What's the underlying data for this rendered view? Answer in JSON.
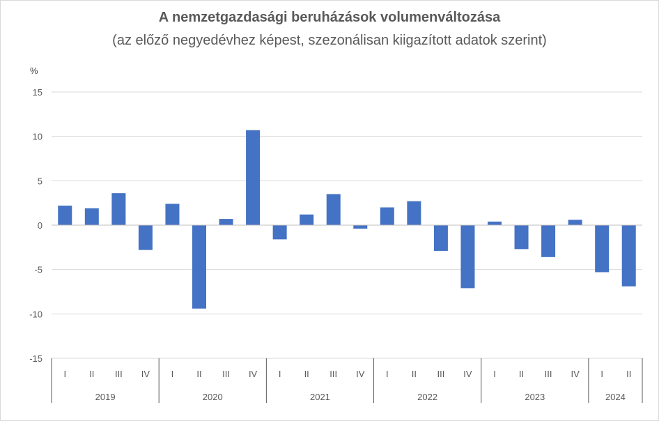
{
  "chart_data": {
    "type": "bar",
    "title": "A nemzetgazdasági beruházások volumenváltozása",
    "subtitle": "(az előző negyedévhez képest, szezonálisan kiigazított adatok szerint)",
    "ylabel": "%",
    "ylim": [
      -15,
      15
    ],
    "yticks": [
      15,
      10,
      5,
      0,
      -5,
      -10,
      -15
    ],
    "grid": true,
    "bar_color": "#4472C4",
    "categories": [
      "2019 I",
      "2019 II",
      "2019 III",
      "2019 IV",
      "2020 I",
      "2020 II",
      "2020 III",
      "2020 IV",
      "2021 I",
      "2021 II",
      "2021 III",
      "2021 IV",
      "2022 I",
      "2022 II",
      "2022 III",
      "2022 IV",
      "2023 I",
      "2023 II",
      "2023 III",
      "2023 IV",
      "2024 I",
      "2024 II"
    ],
    "quarter_labels": [
      "I",
      "II",
      "III",
      "IV",
      "I",
      "II",
      "III",
      "IV",
      "I",
      "II",
      "III",
      "IV",
      "I",
      "II",
      "III",
      "IV",
      "I",
      "II",
      "III",
      "IV",
      "I",
      "II"
    ],
    "years": [
      {
        "label": "2019",
        "quarters": 4
      },
      {
        "label": "2020",
        "quarters": 4
      },
      {
        "label": "2021",
        "quarters": 4
      },
      {
        "label": "2022",
        "quarters": 4
      },
      {
        "label": "2023",
        "quarters": 4
      },
      {
        "label": "2024",
        "quarters": 2
      }
    ],
    "values": [
      2.2,
      1.9,
      3.6,
      -2.8,
      2.4,
      -9.4,
      0.7,
      10.7,
      -1.6,
      1.2,
      3.5,
      -0.4,
      2.0,
      2.7,
      -2.9,
      -7.1,
      0.4,
      -2.7,
      -3.6,
      0.6,
      -5.3,
      -6.9
    ]
  }
}
